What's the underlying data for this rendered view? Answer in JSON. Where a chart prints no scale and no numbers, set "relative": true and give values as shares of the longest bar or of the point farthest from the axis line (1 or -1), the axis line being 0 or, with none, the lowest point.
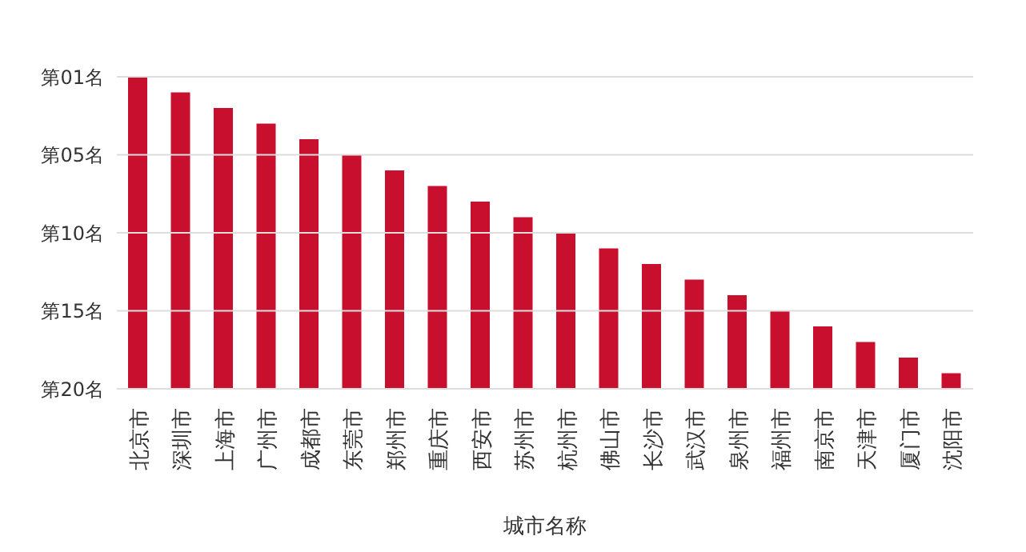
{
  "chart_data": {
    "type": "bar",
    "xlabel": "城市名称",
    "categories": [
      "北京市",
      "深圳市",
      "上海市",
      "广州市",
      "成都市",
      "东莞市",
      "郑州市",
      "重庆市",
      "西安市",
      "苏州市",
      "杭州市",
      "佛山市",
      "长沙市",
      "武汉市",
      "泉州市",
      "福州市",
      "南京市",
      "天津市",
      "厦门市",
      "沈阳市"
    ],
    "values": [
      1,
      0.95,
      0.9,
      0.85,
      0.8,
      0.75,
      0.7,
      0.65,
      0.6,
      0.55,
      0.5,
      0.45,
      0.4,
      0.35,
      0.3,
      0.25,
      0.2,
      0.15,
      0.1,
      0.05
    ],
    "color": "#c8102e",
    "relative": true,
    "ref_lines": [
      {
        "axis": "y",
        "value": 1,
        "label": "第01名",
        "color": "#dddddd"
      },
      {
        "axis": "y",
        "value": 0.75,
        "label": "第05名",
        "color": "#dddddd"
      },
      {
        "axis": "y",
        "value": 0.5,
        "label": "第10名",
        "color": "#dddddd"
      },
      {
        "axis": "y",
        "value": 0.25,
        "label": "第15名",
        "color": "#dddddd"
      },
      {
        "axis": "y",
        "value": 0,
        "label": "第20名",
        "color": "#dddddd"
      }
    ],
    "legend": false
  }
}
